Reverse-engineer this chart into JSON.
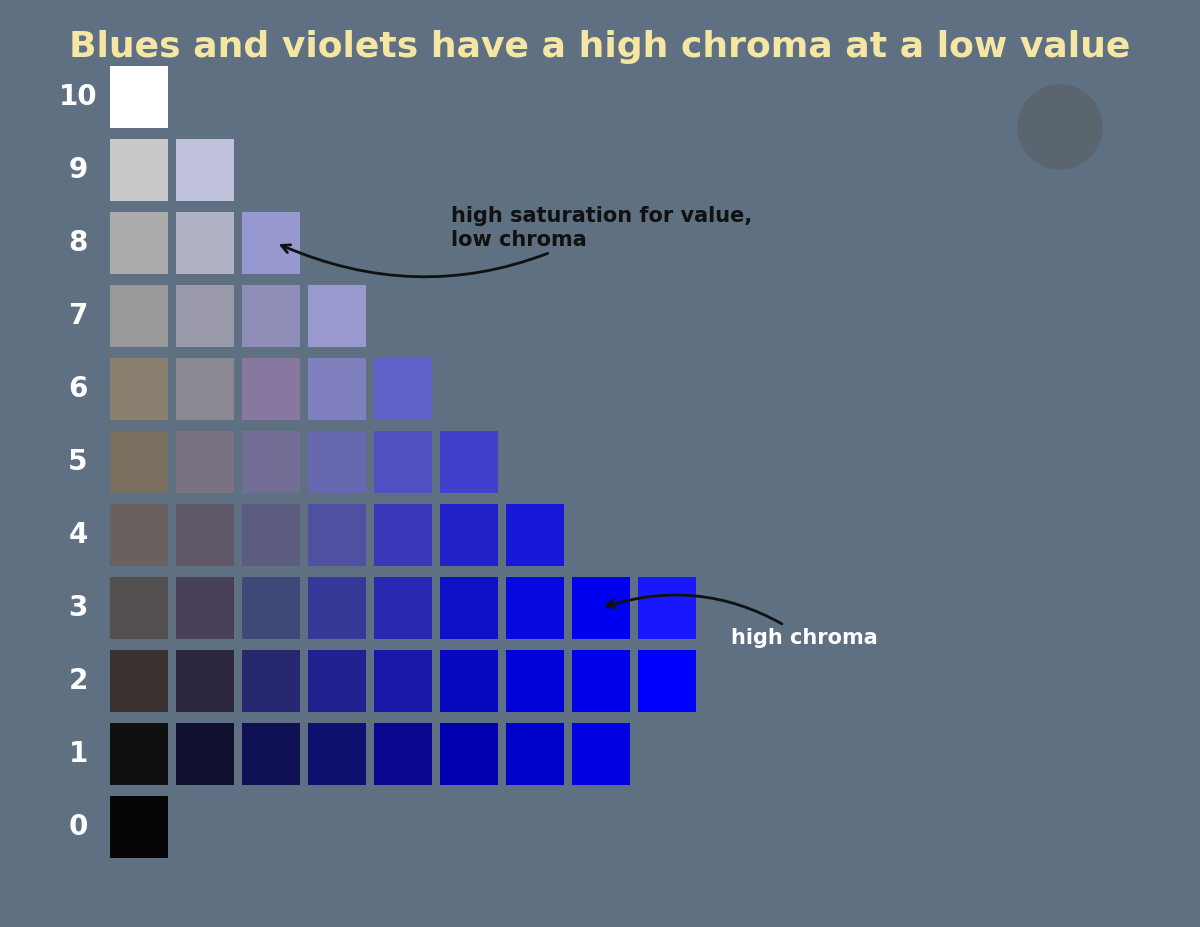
{
  "title": "Blues and violets have a high chroma at a low value",
  "background_color": "#5e7082",
  "title_color": "#f5e6a3",
  "title_fontsize": 26,
  "ylabel_color": "#ffffff",
  "ylabel_fontsize": 20,
  "annotation1_text": "high saturation for value,\nlow chroma",
  "annotation2_text": "high chroma",
  "annotation_fontsize": 15,
  "circle_color": "#5a6570",
  "grid_colors": {
    "10": [
      "#ffffff"
    ],
    "9": [
      "#c9c9c9",
      "#c0c2dc"
    ],
    "8": [
      "#ababab",
      "#b0b2c5",
      "#9898d0"
    ],
    "7": [
      "#999999",
      "#9a9aaa",
      "#8e8eb8",
      "#9999d0"
    ],
    "6": [
      "#8a8070",
      "#8a8890",
      "#8878a0",
      "#8080bf",
      "#6060c8"
    ],
    "5": [
      "#7a7060",
      "#7a7280",
      "#726e96",
      "#6868b0",
      "#5050c0",
      "#4040cc"
    ],
    "4": [
      "#6a6060",
      "#605868",
      "#5c5c80",
      "#5050a0",
      "#3838b8",
      "#2020c8",
      "#1818d8"
    ],
    "3": [
      "#545050",
      "#484058",
      "#404878",
      "#383898",
      "#2828b0",
      "#1010c8",
      "#0808e0",
      "#0000f0",
      "#1818ff"
    ],
    "2": [
      "#3a3030",
      "#2c2840",
      "#282870",
      "#202090",
      "#1818a8",
      "#0808c0",
      "#0000d8",
      "#0000e8",
      "#0000ff"
    ],
    "1": [
      "#101010",
      "#101030",
      "#101055",
      "#0e1070",
      "#0a0890",
      "#0000b0",
      "#0000cc",
      "#0000e0"
    ],
    "0": [
      "#050505"
    ]
  }
}
